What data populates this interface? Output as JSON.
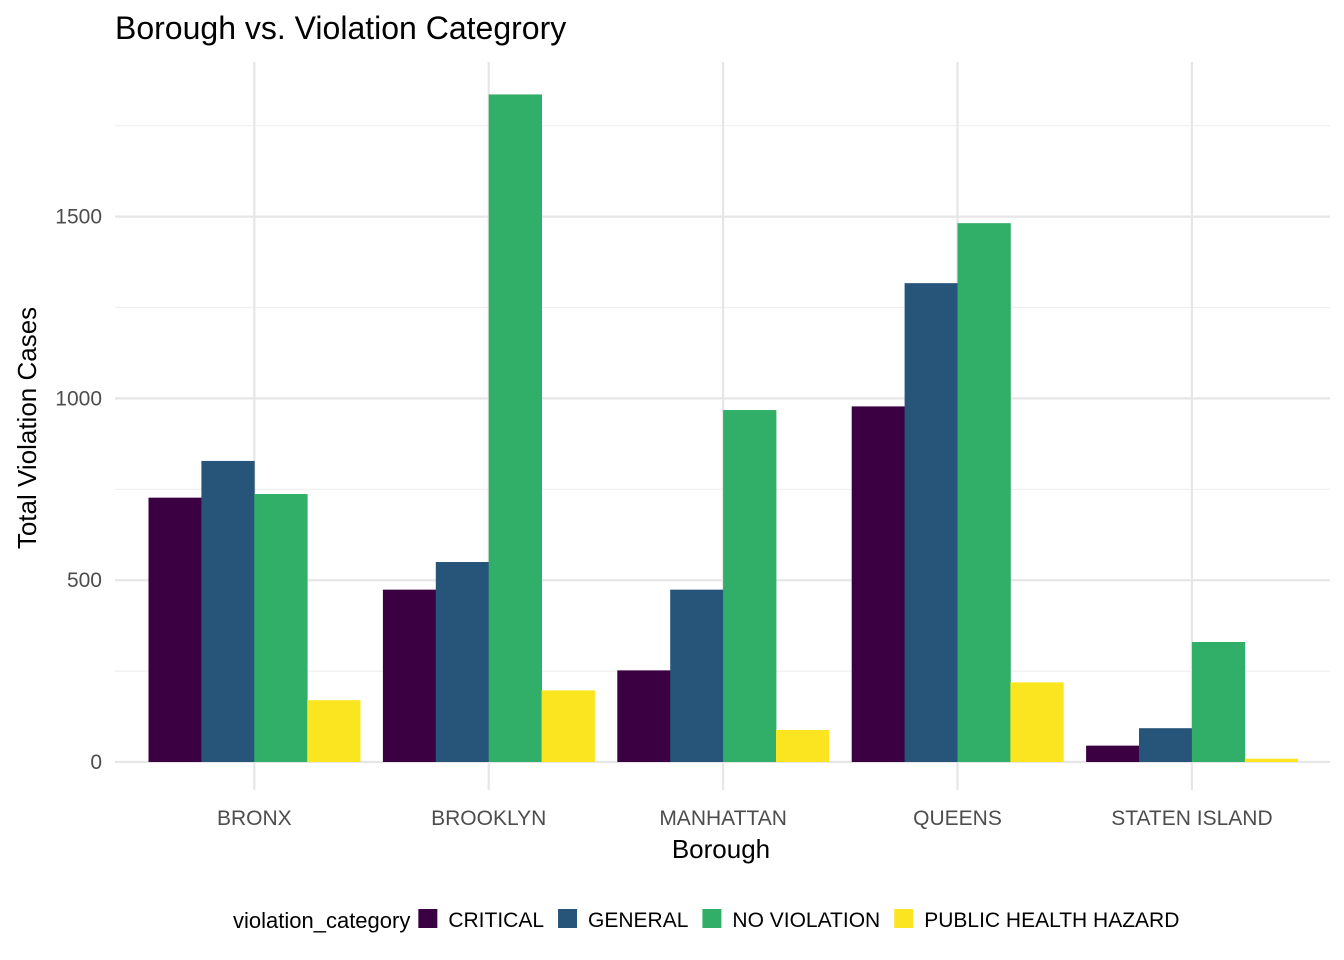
{
  "chart_data": {
    "type": "bar",
    "title": "Borough vs. Violation Categrory",
    "xlabel": "Borough",
    "ylabel": "Total Violation Cases",
    "categories": [
      "BRONX",
      "BROOKLYN",
      "MANHATTAN",
      "QUEENS",
      "STATEN ISLAND"
    ],
    "series": [
      {
        "name": "CRITICAL",
        "color": "#3a0042",
        "values": [
          727,
          474,
          252,
          978,
          45
        ]
      },
      {
        "name": "GENERAL",
        "color": "#27557a",
        "values": [
          828,
          550,
          474,
          1317,
          93
        ]
      },
      {
        "name": "NO VIOLATION",
        "color": "#31ae68",
        "values": [
          737,
          1836,
          968,
          1482,
          330
        ]
      },
      {
        "name": "PUBLIC HEALTH HAZARD",
        "color": "#fae520",
        "values": [
          170,
          197,
          88,
          219,
          9
        ]
      }
    ],
    "ylim": [
      0,
      1900
    ],
    "yticks": [
      0,
      500,
      1000,
      1500
    ],
    "grid": true,
    "legend": {
      "title": "violation_category",
      "position": "bottom"
    }
  }
}
